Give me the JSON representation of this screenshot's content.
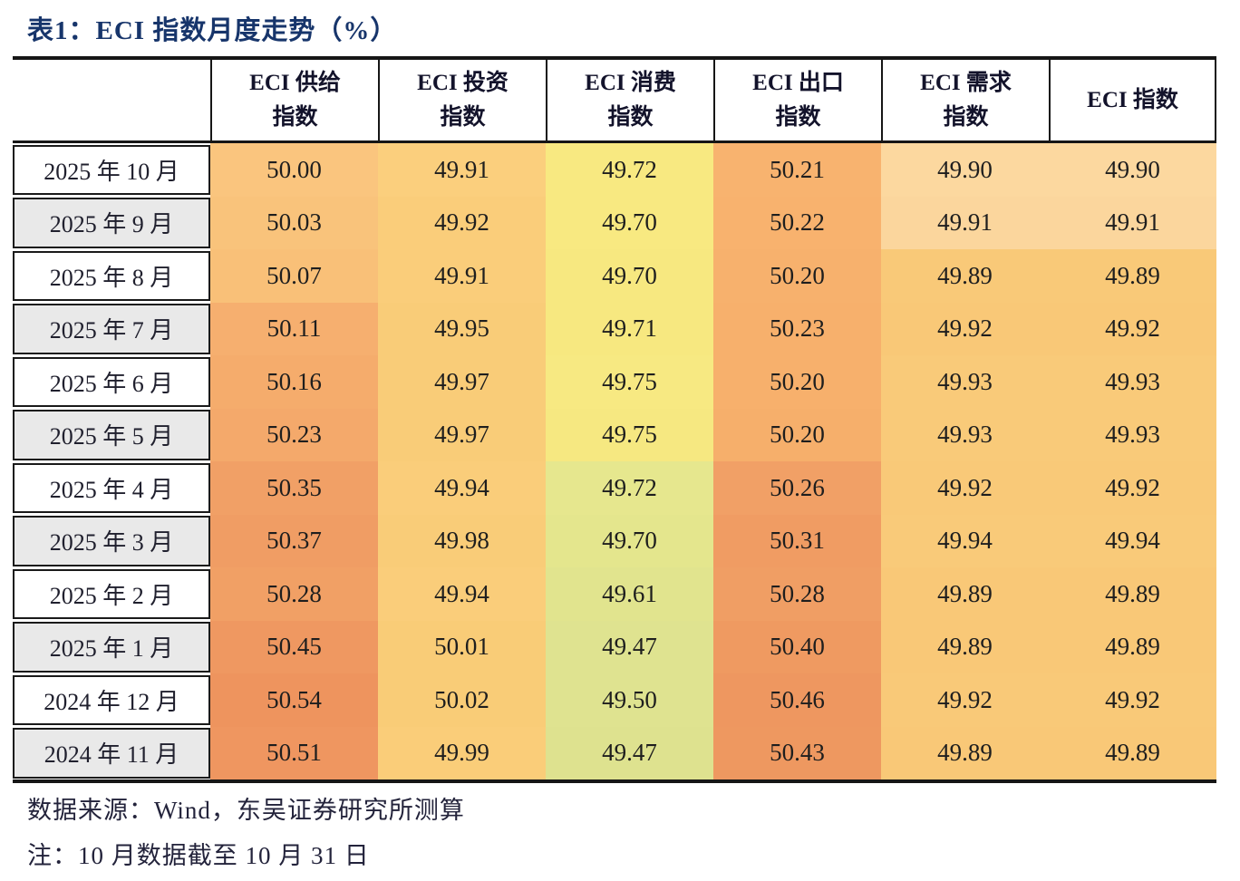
{
  "title": "表1：ECI 指数月度走势（%）",
  "table": {
    "row_header_label": "",
    "columns": [
      {
        "line1": "ECI 供给",
        "line2": "指数"
      },
      {
        "line1": "ECI 投资",
        "line2": "指数"
      },
      {
        "line1": "ECI 消费",
        "line2": "指数"
      },
      {
        "line1": "ECI 出口",
        "line2": "指数"
      },
      {
        "line1": "ECI 需求",
        "line2": "指数"
      },
      {
        "line1": "ECI 指数",
        "line2": ""
      }
    ],
    "rows": [
      {
        "label": "2025 年 10 月",
        "label_bg": "#FFFFFF",
        "values": [
          "50.00",
          "49.91",
          "49.72",
          "50.21",
          "49.90",
          "49.90"
        ],
        "colors": [
          "#FAC57E",
          "#FBCF7D",
          "#F8E981",
          "#F8B36F",
          "#FCD89F",
          "#FCD89F"
        ]
      },
      {
        "label": "2025 年 9 月",
        "label_bg": "#E9E9E9",
        "values": [
          "50.03",
          "49.92",
          "49.70",
          "50.22",
          "49.91",
          "49.91"
        ],
        "colors": [
          "#F9C37B",
          "#FACD7A",
          "#F8E981",
          "#F8B26E",
          "#FBD69D",
          "#FBD69D"
        ]
      },
      {
        "label": "2025 年 8 月",
        "label_bg": "#FFFFFF",
        "values": [
          "50.07",
          "49.91",
          "49.70",
          "50.20",
          "49.89",
          "49.89"
        ],
        "colors": [
          "#F9C078",
          "#FACD7A",
          "#F7E880",
          "#F7B16D",
          "#F9C978",
          "#F9C978"
        ]
      },
      {
        "label": "2025 年 7 月",
        "label_bg": "#E9E9E9",
        "values": [
          "50.11",
          "49.95",
          "49.71",
          "50.23",
          "49.92",
          "49.92"
        ],
        "colors": [
          "#F6AF6F",
          "#F9CC78",
          "#F7E880",
          "#F7B06C",
          "#F9C877",
          "#F9C877"
        ]
      },
      {
        "label": "2025 年 6 月",
        "label_bg": "#FFFFFF",
        "values": [
          "50.16",
          "49.97",
          "49.75",
          "50.20",
          "49.93",
          "49.93"
        ],
        "colors": [
          "#F5AC6C",
          "#F9CC78",
          "#F7E982",
          "#F7B06C",
          "#F9CA79",
          "#F9CA79"
        ]
      },
      {
        "label": "2025 年 5 月",
        "label_bg": "#E9E9E9",
        "values": [
          "50.23",
          "49.97",
          "49.75",
          "50.20",
          "49.93",
          "49.93"
        ],
        "colors": [
          "#F4A96B",
          "#F9CC78",
          "#F6E881",
          "#F6AF6B",
          "#F9CA79",
          "#F9CA79"
        ]
      },
      {
        "label": "2025 年 4 月",
        "label_bg": "#FFFFFF",
        "values": [
          "50.35",
          "49.94",
          "49.72",
          "50.26",
          "49.92",
          "49.92"
        ],
        "colors": [
          "#F1A066",
          "#FACD7A",
          "#E6E78E",
          "#F1A066",
          "#F9C978",
          "#F9C978"
        ]
      },
      {
        "label": "2025 年 3 月",
        "label_bg": "#E9E9E9",
        "values": [
          "50.37",
          "49.98",
          "49.70",
          "50.31",
          "49.94",
          "49.94"
        ],
        "colors": [
          "#F09D64",
          "#F9CC78",
          "#E4E68D",
          "#F09C63",
          "#F9CA79",
          "#F9CA79"
        ]
      },
      {
        "label": "2025 年 2 月",
        "label_bg": "#FFFFFF",
        "values": [
          "50.28",
          "49.94",
          "49.61",
          "50.28",
          "49.89",
          "49.89"
        ],
        "colors": [
          "#F1A065",
          "#FACD7A",
          "#E1E48E",
          "#F09E64",
          "#F9C877",
          "#F9C877"
        ]
      },
      {
        "label": "2025 年 1 月",
        "label_bg": "#E9E9E9",
        "values": [
          "50.45",
          "50.01",
          "49.47",
          "50.40",
          "49.89",
          "49.89"
        ],
        "colors": [
          "#EF9861",
          "#F9CC77",
          "#DFE390",
          "#EF9A61",
          "#F9C877",
          "#F9C877"
        ]
      },
      {
        "label": "2024 年 12 月",
        "label_bg": "#FFFFFF",
        "values": [
          "50.54",
          "50.02",
          "49.50",
          "50.46",
          "49.92",
          "49.92"
        ],
        "colors": [
          "#EE945E",
          "#F9CC77",
          "#DFE390",
          "#EE9760",
          "#F9C978",
          "#F9C978"
        ]
      },
      {
        "label": "2024 年 11 月",
        "label_bg": "#E9E9E9",
        "values": [
          "50.51",
          "49.99",
          "49.47",
          "50.43",
          "49.89",
          "49.89"
        ],
        "colors": [
          "#EF9660",
          "#FACD79",
          "#DEE28F",
          "#EE9860",
          "#F9C877",
          "#F9C877"
        ]
      }
    ]
  },
  "footer": {
    "source": "数据来源：Wind，东吴证券研究所测算",
    "note": "注：10 月数据截至 10 月 31 日"
  },
  "colors": {
    "title_text": "#17356B",
    "table_border": "#161616",
    "header_text": "#13132B",
    "label_text": "#20202E",
    "value_text": "#1E1E1E",
    "row_alt_bg": "#E9E9E9"
  }
}
